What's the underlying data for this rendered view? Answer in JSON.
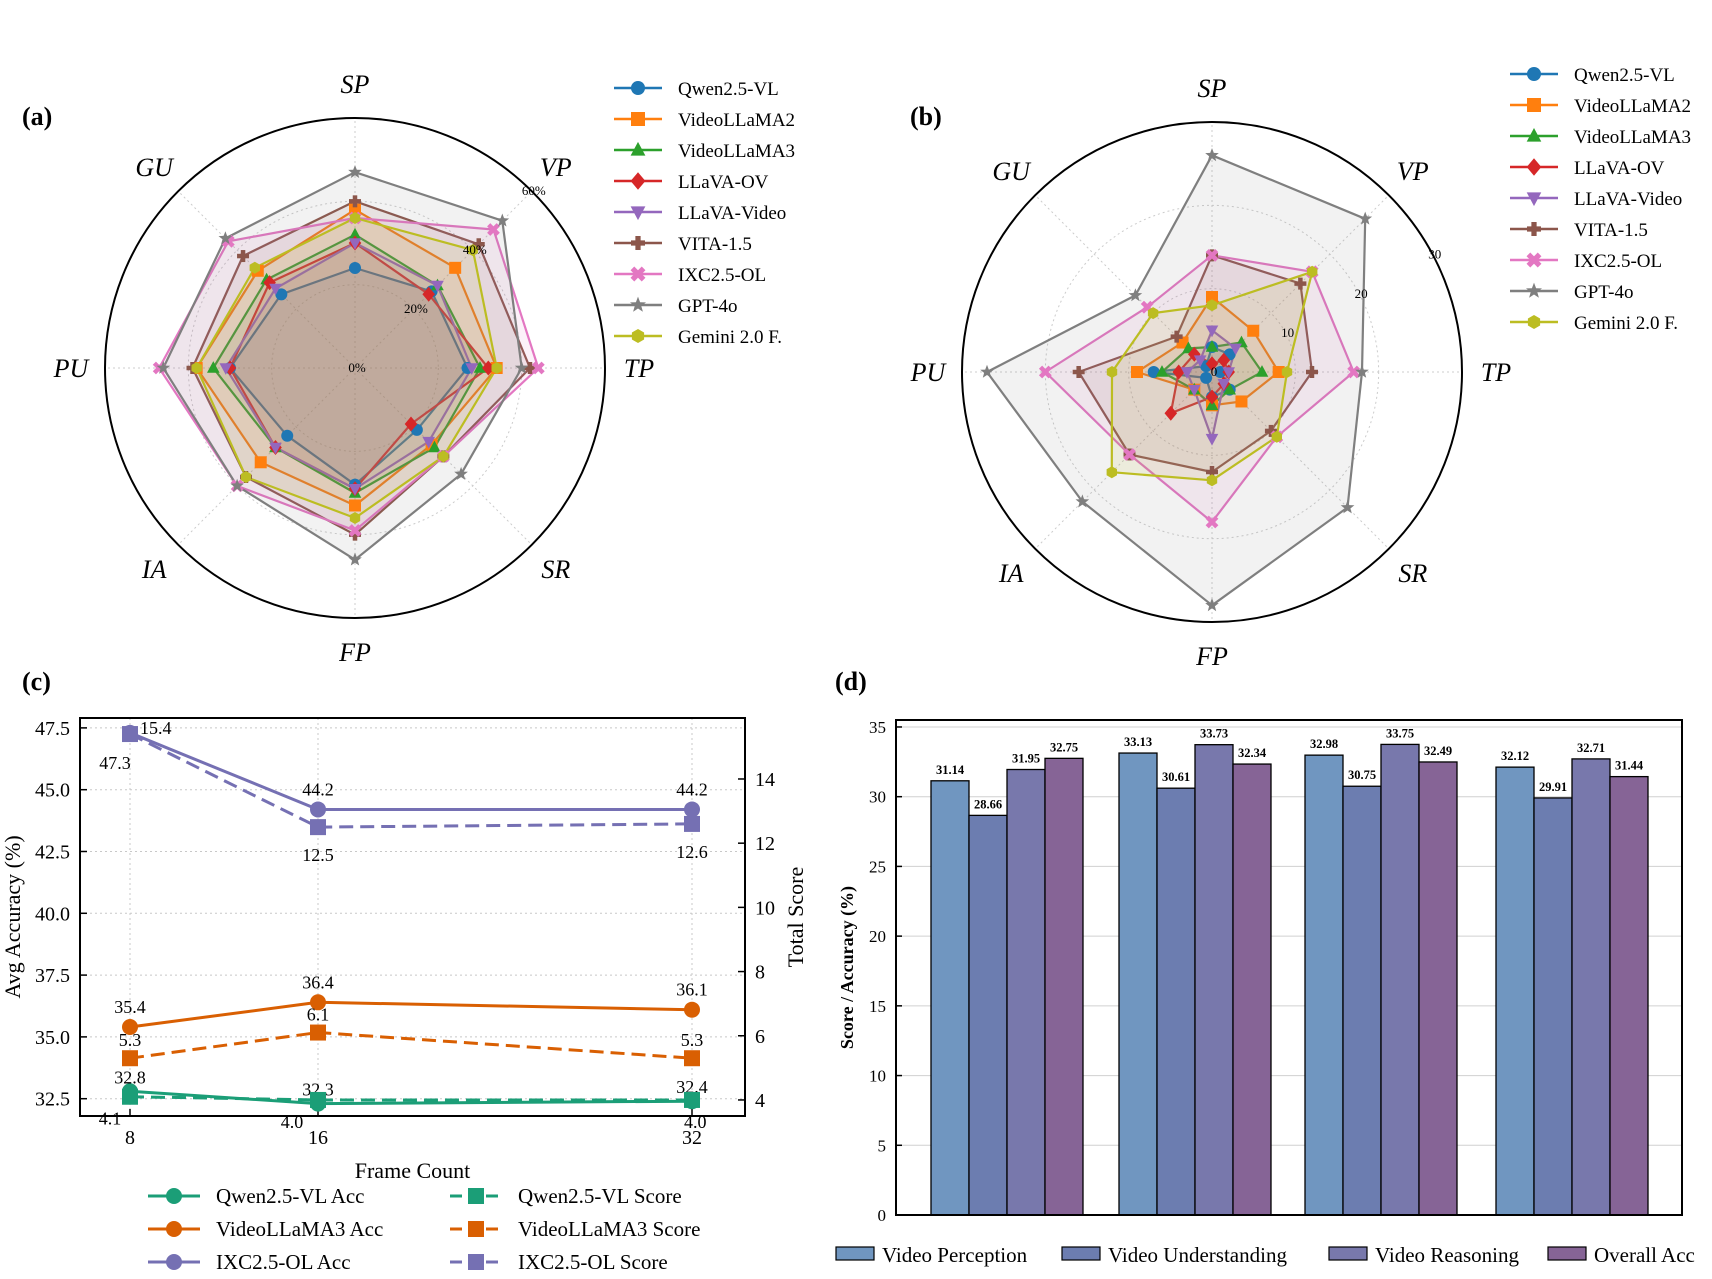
{
  "colors": {
    "Qwen2.5-VL": "#1f77b4",
    "VideoLLaMA2": "#ff7f0e",
    "VideoLLaMA3": "#2ca02c",
    "LLaVA-OV": "#d62728",
    "LLaVA-Video": "#9467bd",
    "VITA-1.5": "#8c564b",
    "IXC2.5-OL": "#e377c2",
    "GPT-4o": "#7f7f7f",
    "Gemini 2.0 F.": "#bcbd22",
    "qwen_line": "#1b9e77",
    "llama3_line": "#d95f02",
    "ixc_line": "#7570b3",
    "bar_perception": "#7096c0",
    "bar_understanding": "#6c7db0",
    "bar_reasoning": "#7878ac",
    "bar_overall": "#866496"
  },
  "chart_data": [
    {
      "id": "a",
      "type": "radar",
      "panel_label": "(a)",
      "axes": [
        "SP",
        "VP",
        "TP",
        "SR",
        "FP",
        "IA",
        "PU",
        "GU"
      ],
      "rmax": 60,
      "ticks": [
        0,
        20,
        40,
        60
      ],
      "tick_labels": [
        "0%",
        "20%",
        "40%",
        "60%"
      ],
      "legend_position": "right",
      "series": [
        {
          "name": "Qwen2.5-VL",
          "marker": "circle",
          "values": [
            24,
            26,
            27,
            21,
            28,
            23,
            30,
            25
          ]
        },
        {
          "name": "VideoLLaMA2",
          "marker": "square",
          "values": [
            38,
            34,
            34,
            26,
            33,
            32,
            38,
            33
          ]
        },
        {
          "name": "VideoLLaMA3",
          "marker": "triangle-up",
          "values": [
            32,
            28,
            30,
            27,
            30,
            27,
            34,
            30
          ]
        },
        {
          "name": "LLaVA-OV",
          "marker": "diamond",
          "values": [
            30,
            25,
            32,
            19,
            29,
            27,
            30,
            29
          ]
        },
        {
          "name": "LLaVA-Video",
          "marker": "triangle-down",
          "values": [
            30,
            28,
            28,
            25,
            29,
            27,
            31,
            27
          ]
        },
        {
          "name": "VITA-1.5",
          "marker": "plus",
          "values": [
            40,
            42,
            42,
            30,
            40,
            37,
            39,
            38
          ]
        },
        {
          "name": "IXC2.5-OL",
          "marker": "x",
          "values": [
            36,
            47,
            44,
            30,
            39,
            40,
            47,
            43
          ]
        },
        {
          "name": "GPT-4o",
          "marker": "star",
          "values": [
            47,
            50,
            40,
            36,
            46,
            40,
            46,
            44
          ]
        },
        {
          "name": "Gemini 2.0 F.",
          "marker": "hexagon",
          "values": [
            36,
            40,
            34,
            30,
            36,
            37,
            38,
            34
          ]
        }
      ]
    },
    {
      "id": "b",
      "type": "radar",
      "panel_label": "(b)",
      "axes": [
        "SP",
        "VP",
        "TP",
        "SR",
        "FP",
        "IA",
        "PU",
        "GU"
      ],
      "rmax": 30,
      "ticks": [
        0,
        10,
        20,
        30
      ],
      "tick_labels": [
        "0",
        "10",
        "20",
        "30"
      ],
      "legend_position": "right",
      "series": [
        {
          "name": "Qwen2.5-VL",
          "marker": "circle",
          "values": [
            3,
            3,
            1,
            3,
            3,
            1,
            7,
            1
          ]
        },
        {
          "name": "VideoLLaMA2",
          "marker": "square",
          "values": [
            9,
            7,
            8,
            5,
            4,
            3,
            9,
            5
          ]
        },
        {
          "name": "VideoLLaMA3",
          "marker": "triangle-up",
          "values": [
            3,
            5,
            6,
            3,
            4,
            3,
            6,
            4
          ]
        },
        {
          "name": "LLaVA-OV",
          "marker": "diamond",
          "values": [
            1,
            2,
            2,
            2,
            3,
            7,
            4,
            3
          ]
        },
        {
          "name": "LLaVA-Video",
          "marker": "triangle-down",
          "values": [
            5,
            4,
            2,
            2,
            8,
            3,
            3,
            2
          ]
        },
        {
          "name": "VITA-1.5",
          "marker": "plus",
          "values": [
            14,
            15,
            12,
            10,
            12,
            14,
            16,
            6
          ]
        },
        {
          "name": "IXC2.5-OL",
          "marker": "x",
          "values": [
            14,
            17,
            17,
            11,
            18,
            14,
            20,
            11
          ]
        },
        {
          "name": "GPT-4o",
          "marker": "star",
          "values": [
            26,
            26,
            18,
            23,
            28,
            22,
            27,
            13
          ]
        },
        {
          "name": "Gemini 2.0 F.",
          "marker": "hexagon",
          "values": [
            8,
            17,
            9,
            11,
            13,
            17,
            12,
            10
          ]
        }
      ]
    },
    {
      "id": "c",
      "type": "line",
      "panel_label": "(c)",
      "x": [
        8,
        16,
        32
      ],
      "xlabel": "Frame Count",
      "ylabel": "Avg Accuracy (%)",
      "y2label": "Total Score",
      "ylim": [
        31.8,
        47.9
      ],
      "y2lim": [
        3.5,
        15.9
      ],
      "yticks": [
        "32.5",
        "35.0",
        "37.5",
        "40.0",
        "42.5",
        "45.0",
        "47.5"
      ],
      "y2ticks": [
        "4",
        "6",
        "8",
        "10",
        "12",
        "14"
      ],
      "xticks": [
        "8",
        "16",
        "32"
      ],
      "grid": true,
      "legend_position": "bottom",
      "series": [
        {
          "name": "Qwen2.5-VL Acc",
          "axis": "left",
          "style": "solid",
          "marker": "circle",
          "color_key": "qwen_line",
          "values": [
            32.8,
            32.3,
            32.4
          ],
          "labels": [
            "32.8",
            "32.3",
            "32.4"
          ]
        },
        {
          "name": "VideoLLaMA3 Acc",
          "axis": "left",
          "style": "solid",
          "marker": "circle",
          "color_key": "llama3_line",
          "values": [
            35.4,
            36.4,
            36.1
          ],
          "labels": [
            "35.4",
            "36.4",
            "36.1"
          ]
        },
        {
          "name": "IXC2.5-OL Acc",
          "axis": "left",
          "style": "solid",
          "marker": "circle",
          "color_key": "ixc_line",
          "values": [
            47.3,
            44.2,
            44.2
          ],
          "labels": [
            "47.3",
            "44.2",
            "44.2"
          ]
        },
        {
          "name": "Qwen2.5-VL Score",
          "axis": "right",
          "style": "dashed",
          "marker": "square",
          "color_key": "qwen_line",
          "values": [
            4.1,
            4.0,
            4.0
          ],
          "labels": [
            "4.1",
            "4.0",
            "4.0"
          ]
        },
        {
          "name": "VideoLLaMA3 Score",
          "axis": "right",
          "style": "dashed",
          "marker": "square",
          "color_key": "llama3_line",
          "values": [
            5.3,
            6.1,
            5.3
          ],
          "labels": [
            "5.3",
            "6.1",
            "5.3"
          ]
        },
        {
          "name": "IXC2.5-OL Score",
          "axis": "right",
          "style": "dashed",
          "marker": "square",
          "color_key": "ixc_line",
          "values": [
            15.4,
            12.5,
            12.6
          ],
          "labels": [
            "15.4",
            "12.5",
            "12.6"
          ]
        }
      ]
    },
    {
      "id": "d",
      "type": "bar",
      "panel_label": "(d)",
      "groups": 4,
      "ylabel": "Score / Accuracy (%)",
      "ylim": [
        0,
        35.5
      ],
      "yticks": [
        "0",
        "5",
        "10",
        "15",
        "20",
        "25",
        "30",
        "35"
      ],
      "grid": true,
      "legend_position": "bottom",
      "series": [
        {
          "name": "Video Perception",
          "color_key": "bar_perception",
          "values": [
            31.14,
            33.13,
            32.98,
            32.12
          ],
          "labels": [
            "31.14",
            "33.13",
            "32.98",
            "32.12"
          ]
        },
        {
          "name": "Video Understanding",
          "color_key": "bar_understanding",
          "values": [
            28.66,
            30.61,
            30.75,
            29.91
          ],
          "labels": [
            "28.66",
            "30.61",
            "30.75",
            "29.91"
          ]
        },
        {
          "name": "Video Reasoning",
          "color_key": "bar_reasoning",
          "values": [
            31.95,
            33.73,
            33.75,
            32.71
          ],
          "labels": [
            "31.95",
            "33.73",
            "33.75",
            "32.71"
          ]
        },
        {
          "name": "Overall Acc",
          "color_key": "bar_overall",
          "values": [
            32.75,
            32.34,
            32.49,
            31.44
          ],
          "labels": [
            "32.75",
            "32.34",
            "32.49",
            "31.44"
          ]
        }
      ]
    }
  ]
}
